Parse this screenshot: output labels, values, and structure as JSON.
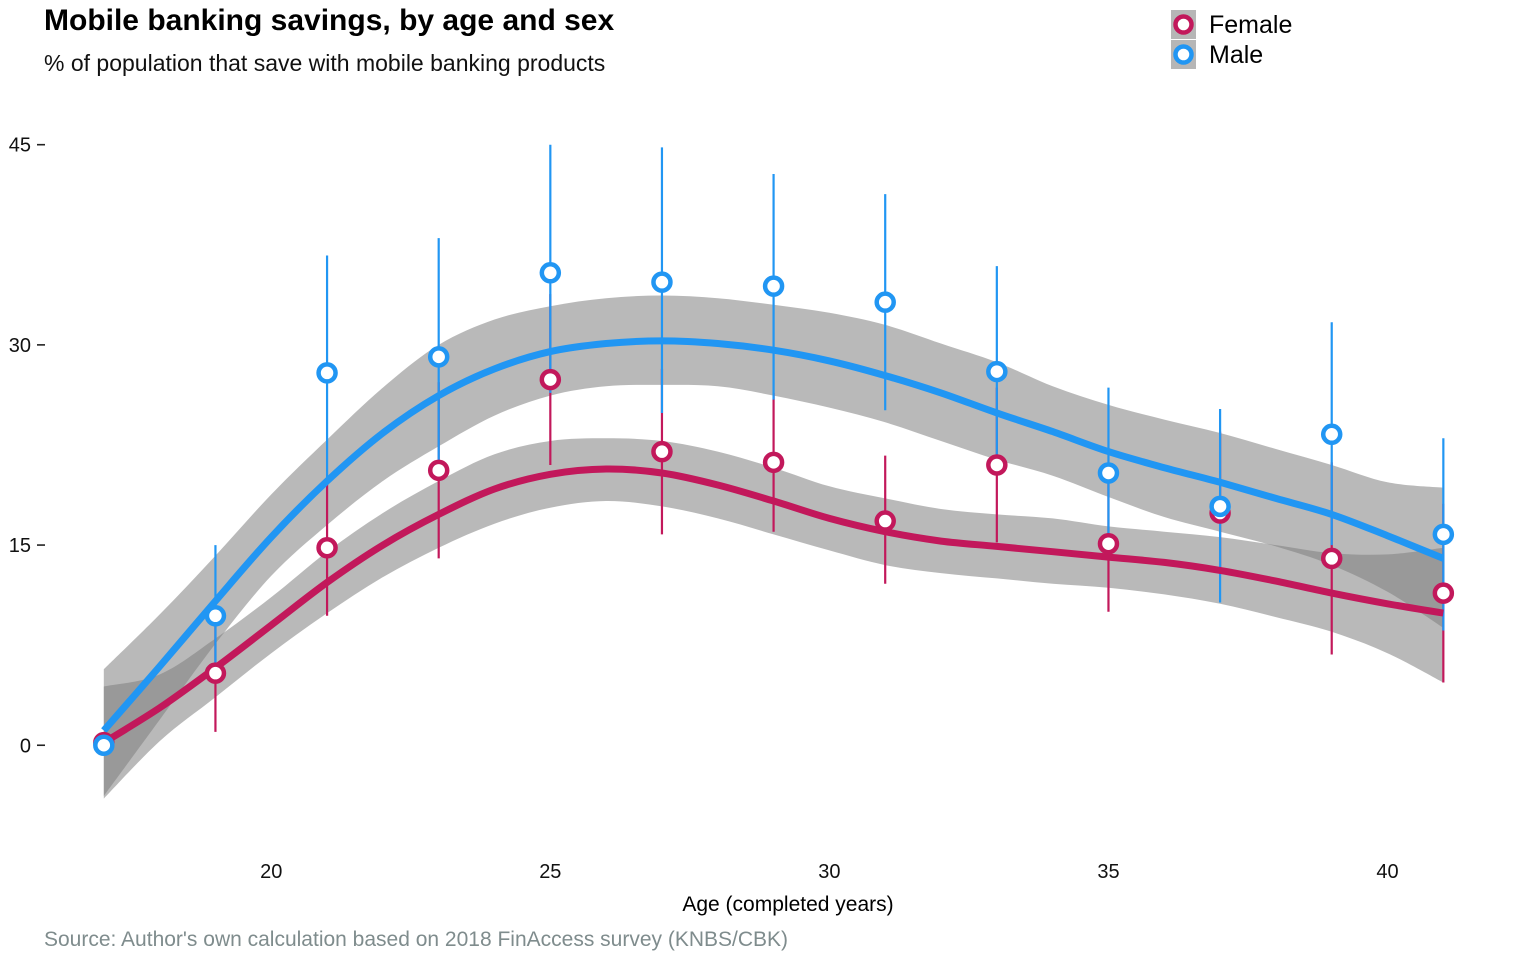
{
  "chart_data": {
    "type": "scatter",
    "title": "Mobile banking savings, by age and sex",
    "subtitle": "% of population that save with mobile banking products",
    "caption": "Source: Author's own calculation based on 2018 FinAccess survey (KNBS/CBK)",
    "xlabel": "Age (completed years)",
    "ylabel": "",
    "xlim": [
      16.0,
      41.8
    ],
    "ylim": [
      -6.5,
      47
    ],
    "x_ticks": [
      20,
      25,
      30,
      35,
      40
    ],
    "y_ticks": [
      0,
      15,
      30,
      45
    ],
    "grid": false,
    "legend_position": "top-right",
    "series": [
      {
        "name": "Female",
        "color": "#c2185b",
        "x": [
          17,
          19,
          21,
          23,
          25,
          27,
          29,
          31,
          33,
          35,
          37,
          39,
          41
        ],
        "y": [
          0.2,
          5.4,
          14.8,
          20.6,
          27.4,
          22.0,
          21.2,
          16.8,
          21.0,
          15.1,
          17.4,
          14.0,
          11.4
        ],
        "ci_low": [
          0.2,
          1.0,
          9.7,
          14.0,
          21.0,
          15.8,
          16.0,
          12.1,
          15.2,
          10.0,
          13.0,
          6.8,
          4.7
        ],
        "ci_high": [
          0.2,
          9.8,
          19.9,
          27.2,
          33.8,
          28.2,
          26.4,
          21.7,
          26.8,
          20.2,
          23.5,
          21.2,
          18.1
        ],
        "smooth_x": [
          17,
          18,
          19,
          20,
          21,
          22,
          23,
          24,
          25,
          26,
          27,
          28,
          29,
          30,
          31,
          32,
          33,
          34,
          35,
          36,
          37,
          38,
          39,
          40,
          41
        ],
        "smooth_y": [
          0.2,
          2.8,
          5.8,
          9.0,
          12.2,
          15.0,
          17.3,
          19.2,
          20.3,
          20.7,
          20.4,
          19.5,
          18.3,
          17.0,
          16.0,
          15.3,
          14.9,
          14.5,
          14.1,
          13.7,
          13.1,
          12.3,
          11.4,
          10.6,
          9.9
        ],
        "band_low": [
          -4.0,
          0.3,
          3.6,
          6.9,
          9.9,
          12.6,
          14.8,
          16.6,
          17.8,
          18.3,
          17.9,
          17.0,
          15.8,
          14.6,
          13.5,
          12.9,
          12.5,
          12.1,
          11.8,
          11.3,
          10.6,
          9.6,
          8.5,
          6.9,
          4.7
        ],
        "band_high": [
          4.4,
          5.3,
          8.0,
          11.1,
          14.5,
          17.4,
          19.8,
          21.8,
          22.8,
          23.0,
          22.8,
          22.0,
          20.8,
          19.4,
          18.5,
          17.7,
          17.3,
          17.0,
          16.4,
          16.0,
          15.6,
          15.0,
          14.4,
          14.3,
          14.8
        ]
      },
      {
        "name": "Male",
        "color": "#2196f3",
        "x": [
          17,
          19,
          21,
          23,
          25,
          27,
          29,
          31,
          33,
          35,
          37,
          39,
          41
        ],
        "y": [
          0.0,
          9.7,
          27.9,
          29.1,
          35.4,
          34.7,
          34.4,
          33.2,
          28.0,
          20.4,
          17.9,
          23.3,
          15.8
        ],
        "ci_low": [
          0.0,
          4.8,
          19.9,
          20.4,
          26.4,
          24.9,
          25.9,
          25.1,
          20.9,
          14.1,
          10.7,
          15.0,
          8.6
        ],
        "ci_high": [
          0.0,
          15.0,
          36.7,
          38.0,
          45.0,
          44.8,
          42.8,
          41.3,
          35.9,
          26.8,
          25.2,
          31.7,
          23.0
        ],
        "smooth_x": [
          17,
          18,
          19,
          20,
          21,
          22,
          23,
          24,
          25,
          26,
          27,
          28,
          29,
          30,
          31,
          32,
          33,
          34,
          35,
          36,
          37,
          38,
          39,
          40,
          41
        ],
        "smooth_y": [
          1.1,
          5.9,
          10.8,
          15.6,
          19.8,
          23.4,
          26.2,
          28.2,
          29.5,
          30.1,
          30.3,
          30.1,
          29.6,
          28.8,
          27.7,
          26.4,
          24.9,
          23.5,
          22.0,
          20.8,
          19.7,
          18.5,
          17.3,
          15.7,
          14.0
        ],
        "band_low": [
          -3.8,
          1.9,
          7.6,
          12.7,
          16.5,
          19.8,
          22.4,
          24.7,
          26.2,
          26.9,
          27.0,
          26.9,
          26.2,
          25.3,
          24.2,
          22.8,
          21.4,
          20.2,
          18.6,
          17.1,
          16.0,
          14.9,
          13.5,
          11.5,
          8.8
        ],
        "band_high": [
          5.7,
          9.8,
          14.2,
          18.8,
          22.9,
          26.8,
          30.0,
          31.9,
          32.9,
          33.5,
          33.7,
          33.5,
          33.0,
          32.4,
          31.5,
          30.1,
          28.7,
          26.9,
          25.5,
          24.4,
          23.4,
          22.2,
          21.0,
          19.7,
          19.3
        ]
      }
    ]
  }
}
